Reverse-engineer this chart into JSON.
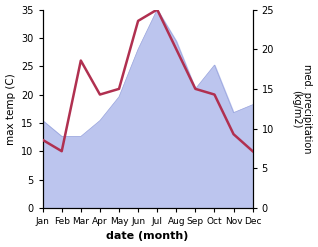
{
  "months": [
    "Jan",
    "Feb",
    "Mar",
    "Apr",
    "May",
    "Jun",
    "Jul",
    "Aug",
    "Sep",
    "Oct",
    "Nov",
    "Dec"
  ],
  "temperature": [
    12,
    10,
    26,
    20,
    21,
    33,
    35,
    28,
    21,
    20,
    13,
    10
  ],
  "precipitation": [
    11,
    9,
    9,
    11,
    14,
    20,
    25,
    21,
    15,
    18,
    12,
    13
  ],
  "temp_color": "#b03050",
  "precip_fill_color": "#bcc5ee",
  "precip_edge_color": "#9aa5dd",
  "temp_ylim": [
    0,
    35
  ],
  "precip_ylim": [
    0,
    25
  ],
  "temp_yticks": [
    0,
    5,
    10,
    15,
    20,
    25,
    30,
    35
  ],
  "precip_yticks": [
    0,
    5,
    10,
    15,
    20,
    25
  ],
  "xlabel": "date (month)",
  "ylabel_left": "max temp (C)",
  "ylabel_right": "med. precipitation\n(kg/m2)",
  "temp_linewidth": 1.8,
  "fig_width": 3.18,
  "fig_height": 2.47,
  "bg_color": "#f5f5f5"
}
